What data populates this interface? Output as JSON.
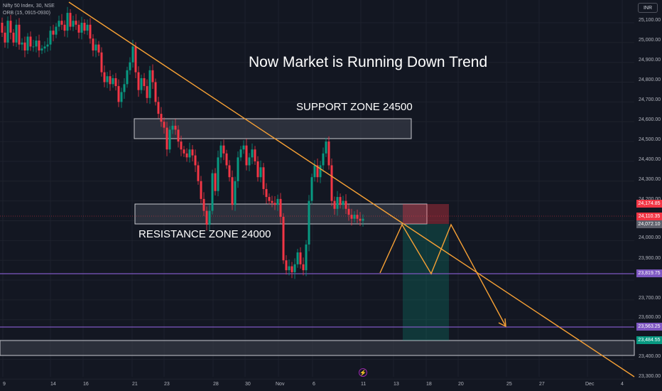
{
  "header": {
    "symbol": "Nifty 50 Index, 30, NSE",
    "indicator": "ORB (15, 0915-0930)"
  },
  "currency": "INR",
  "annotations": {
    "title": "Now Market is Running Down Trend",
    "support_label": "SUPPORT ZONE 24500",
    "resistance_label": "RESISTANCE ZONE 24000"
  },
  "price_axis": {
    "ticks": [
      "25,100.00",
      "25,000.00",
      "24,900.00",
      "24,800.00",
      "24,700.00",
      "24,600.00",
      "24,500.00",
      "24,400.00",
      "24,300.00",
      "24,200.00",
      "24,000.00",
      "23,900.00",
      "23,700.00",
      "23,600.00",
      "23,400.00",
      "23,300.00"
    ],
    "tags": [
      {
        "text": "24,174.85",
        "color": "#f23645"
      },
      {
        "text": "24,110.35",
        "color": "#f23645"
      },
      {
        "text": "24,072.10",
        "color": "#5d606b"
      },
      {
        "text": "23,819.75",
        "color": "#7e57c2"
      },
      {
        "text": "23,563.25",
        "color": "#7e57c2"
      },
      {
        "text": "23,484.55",
        "color": "#089981"
      }
    ]
  },
  "time_axis": {
    "labels": [
      "9",
      "14",
      "16",
      "21",
      "23",
      "28",
      "30",
      "Nov",
      "6",
      "11",
      "13",
      "18",
      "20",
      "25",
      "27",
      "Dec",
      "4"
    ]
  },
  "colors": {
    "up": "#089981",
    "down": "#f23645",
    "trendline": "#f7a135",
    "level": "#7e57c2"
  },
  "chart_data": {
    "type": "candlestick",
    "symbol": "Nifty 50 Index",
    "interval": "30",
    "ylim": [
      23280,
      25160
    ],
    "x_axis_labels": [
      "9",
      "14",
      "16",
      "21",
      "23",
      "28",
      "30",
      "Nov",
      "6",
      "11",
      "13",
      "18",
      "20",
      "25",
      "27",
      "Dec",
      "4"
    ],
    "path_points": [
      [
        0,
        25100
      ],
      [
        4,
        25050
      ],
      [
        8,
        25000
      ],
      [
        12,
        25110
      ],
      [
        16,
        25050
      ],
      [
        20,
        25000
      ],
      [
        24,
        25090
      ],
      [
        28,
        24990
      ],
      [
        32,
        25000
      ],
      [
        36,
        24960
      ],
      [
        40,
        25030
      ],
      [
        44,
        24980
      ],
      [
        48,
        24980
      ],
      [
        52,
        25010
      ],
      [
        56,
        24960
      ],
      [
        60,
        24970
      ],
      [
        64,
        24980
      ],
      [
        68,
        24990
      ],
      [
        72,
        25060
      ],
      [
        76,
        25040
      ],
      [
        80,
        25080
      ],
      [
        84,
        25110
      ],
      [
        88,
        25090
      ],
      [
        92,
        25060
      ],
      [
        96,
        25150
      ],
      [
        100,
        25080
      ],
      [
        104,
        25110
      ],
      [
        108,
        25090
      ],
      [
        112,
        25050
      ],
      [
        116,
        25100
      ],
      [
        120,
        25060
      ],
      [
        124,
        25090
      ],
      [
        128,
        25020
      ],
      [
        132,
        24960
      ],
      [
        136,
        24990
      ],
      [
        140,
        24950
      ],
      [
        144,
        24850
      ],
      [
        148,
        24800
      ],
      [
        152,
        24830
      ],
      [
        156,
        24790
      ],
      [
        160,
        24820
      ],
      [
        164,
        24780
      ],
      [
        168,
        24700
      ],
      [
        172,
        24750
      ],
      [
        176,
        24790
      ],
      [
        180,
        24860
      ],
      [
        184,
        24900
      ],
      [
        188,
        24980
      ],
      [
        192,
        24850
      ],
      [
        196,
        24760
      ],
      [
        200,
        24820
      ],
      [
        204,
        24780
      ],
      [
        208,
        24720
      ],
      [
        212,
        24860
      ],
      [
        216,
        24800
      ],
      [
        220,
        24700
      ],
      [
        224,
        24640
      ],
      [
        228,
        24600
      ],
      [
        232,
        24570
      ],
      [
        236,
        24460
      ],
      [
        240,
        24560
      ],
      [
        244,
        24580
      ],
      [
        248,
        24560
      ],
      [
        252,
        24500
      ],
      [
        256,
        24460
      ],
      [
        260,
        24440
      ],
      [
        264,
        24420
      ],
      [
        268,
        24460
      ],
      [
        272,
        24430
      ],
      [
        276,
        24380
      ],
      [
        280,
        24300
      ],
      [
        284,
        24210
      ],
      [
        288,
        24150
      ],
      [
        292,
        24080
      ],
      [
        296,
        24150
      ],
      [
        300,
        24340
      ],
      [
        304,
        24250
      ],
      [
        308,
        24420
      ],
      [
        312,
        24480
      ],
      [
        316,
        24440
      ],
      [
        320,
        24380
      ],
      [
        324,
        24320
      ],
      [
        328,
        24180
      ],
      [
        332,
        24300
      ],
      [
        336,
        24420
      ],
      [
        340,
        24460
      ],
      [
        344,
        24480
      ],
      [
        348,
        24380
      ],
      [
        352,
        24420
      ],
      [
        356,
        24460
      ],
      [
        360,
        24400
      ],
      [
        364,
        24320
      ],
      [
        368,
        24370
      ],
      [
        372,
        24260
      ],
      [
        376,
        24220
      ],
      [
        380,
        24200
      ],
      [
        384,
        24190
      ],
      [
        388,
        24180
      ],
      [
        392,
        24210
      ],
      [
        396,
        24120
      ],
      [
        400,
        23900
      ],
      [
        404,
        23850
      ],
      [
        408,
        23870
      ],
      [
        412,
        23840
      ],
      [
        416,
        23880
      ],
      [
        420,
        23940
      ],
      [
        424,
        23880
      ],
      [
        428,
        23850
      ],
      [
        432,
        23980
      ],
      [
        436,
        24200
      ],
      [
        440,
        24320
      ],
      [
        444,
        24380
      ],
      [
        448,
        24320
      ],
      [
        452,
        24380
      ],
      [
        456,
        24440
      ],
      [
        460,
        24500
      ],
      [
        464,
        24380
      ],
      [
        468,
        24200
      ],
      [
        472,
        24160
      ],
      [
        476,
        24220
      ],
      [
        480,
        24180
      ],
      [
        484,
        24200
      ],
      [
        488,
        24160
      ],
      [
        492,
        24130
      ],
      [
        496,
        24110
      ],
      [
        500,
        24130
      ],
      [
        504,
        24110
      ],
      [
        508,
        24100
      ],
      [
        512,
        24110
      ]
    ],
    "support_zone": {
      "top": 24610,
      "bottom": 24510,
      "label": "SUPPORT ZONE 24500"
    },
    "resistance_zone": {
      "top": 24180,
      "bottom": 24080,
      "label": "RESISTANCE ZONE 24000"
    },
    "lower_zone": {
      "top": 23495,
      "bottom": 23420
    },
    "trendline": {
      "start_price": 25165,
      "end_price": 23290
    },
    "horizontal_levels": [
      23819.75,
      23563.25
    ],
    "last_price": 24110.35,
    "projection_path": [
      23830,
      24080,
      23820,
      24080,
      23560
    ],
    "position_tool": {
      "entry": 24072.1,
      "stop": 24174.85,
      "target": 23484.55
    }
  }
}
